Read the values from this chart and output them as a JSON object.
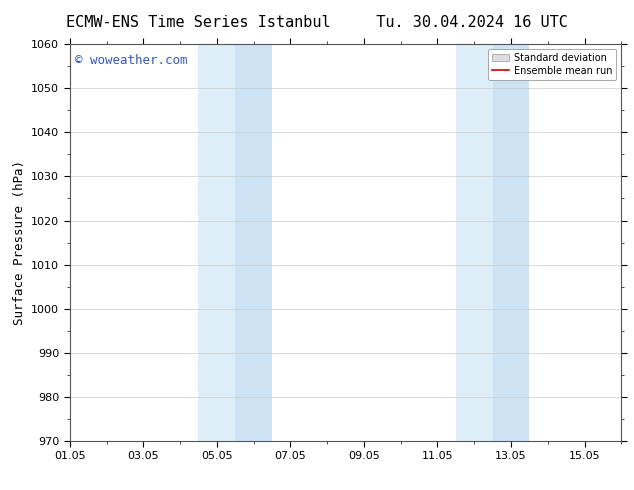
{
  "title_left": "ECMW-ENS Time Series Istanbul",
  "title_right": "Tu. 30.04.2024 16 UTC",
  "ylabel": "Surface Pressure (hPa)",
  "ylim": [
    970,
    1060
  ],
  "yticks": [
    970,
    980,
    990,
    1000,
    1010,
    1020,
    1030,
    1040,
    1050,
    1060
  ],
  "xtick_labels": [
    "01.05",
    "03.05",
    "05.05",
    "07.05",
    "09.05",
    "11.05",
    "13.05",
    "15.05"
  ],
  "xtick_positions": [
    0,
    2,
    4,
    6,
    8,
    10,
    12,
    14
  ],
  "xlim": [
    0,
    15
  ],
  "shaded_regions": [
    {
      "x_start": 3.5,
      "x_end": 4.5,
      "color": "#ddeef8"
    },
    {
      "x_start": 4.5,
      "x_end": 5.5,
      "color": "#cce2f5"
    },
    {
      "x_start": 10.5,
      "x_end": 11.5,
      "color": "#ddeef8"
    },
    {
      "x_start": 11.5,
      "x_end": 12.5,
      "color": "#cce2f5"
    }
  ],
  "watermark": "© woweather.com",
  "watermark_color": "#3355cc",
  "background_color": "#ffffff",
  "plot_bg_color": "#ffffff",
  "grid_color": "#cccccc",
  "title_fontsize": 11,
  "tick_fontsize": 8,
  "ylabel_fontsize": 9,
  "legend_std_color": "#cccccc",
  "legend_mean_color": "#cc0000"
}
